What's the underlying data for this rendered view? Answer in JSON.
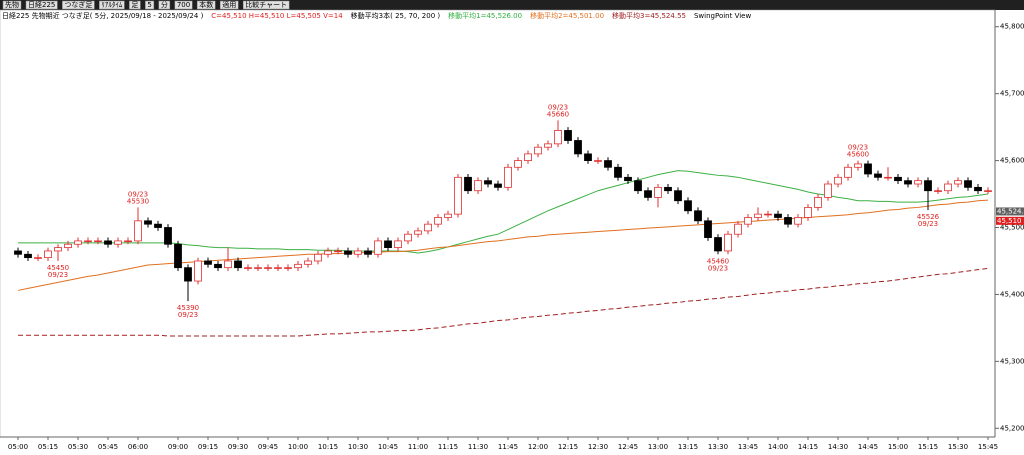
{
  "toolbar": [
    "先物",
    "日経225",
    "つなぎ足",
    "ﾘｱﾙﾀｲﾑ",
    "足",
    "5",
    "分",
    "700",
    "本数",
    "適用",
    "比較チャート"
  ],
  "chart_data": {
    "type": "candlestick",
    "header": [
      {
        "text": "日経225 先物期近 つなぎ足( 5分, 2025/09/18 - 2025/09/24 )",
        "color": "#000000"
      },
      {
        "text": "C=45,510 H=45,510 L=45,505 V=14",
        "color": "#e02020"
      },
      {
        "text": "移動平均3本( 25, 70, 200 )",
        "color": "#000000"
      },
      {
        "text": "移動平均1=45,526.00",
        "color": "#30b040"
      },
      {
        "text": "移動平均2=45,501.00",
        "color": "#e07020"
      },
      {
        "text": "移動平均3=45,524.55",
        "color": "#a02020"
      },
      {
        "text": "SwingPoint View",
        "color": "#000000"
      }
    ],
    "categories": [
      "05:00",
      null,
      null,
      "05:15",
      null,
      null,
      "05:30",
      null,
      null,
      "05:45",
      null,
      null,
      "06:00",
      null,
      null,
      null,
      "09:00",
      null,
      null,
      "09:15",
      null,
      null,
      "09:30",
      null,
      null,
      "09:45",
      null,
      null,
      "10:00",
      null,
      null,
      "10:15",
      null,
      null,
      "10:30",
      null,
      null,
      "10:45",
      null,
      null,
      "11:00",
      null,
      null,
      "11:15",
      null,
      null,
      "11:30",
      null,
      null,
      "11:45",
      null,
      null,
      "12:00",
      null,
      null,
      "12:15",
      null,
      null,
      "12:30",
      null,
      null,
      "12:45",
      null,
      null,
      "13:00",
      null,
      null,
      "13:15",
      null,
      null,
      "13:30",
      null,
      null,
      "13:45",
      null,
      null,
      "14:00",
      null,
      null,
      "14:15",
      null,
      null,
      "14:30",
      null,
      null,
      "14:45",
      null,
      null,
      "15:00",
      null,
      null,
      "15:15",
      null,
      null,
      "15:30",
      null,
      null,
      "15:45"
    ],
    "open": [
      45465,
      45460,
      45455,
      45455,
      45465,
      45470,
      45475,
      45480,
      45480,
      45480,
      45475,
      45480,
      45480,
      45510,
      45505,
      45500,
      45475,
      45440,
      45420,
      45450,
      45445,
      45440,
      45450,
      45440,
      45440,
      45440,
      45440,
      45440,
      45440,
      45445,
      45450,
      45460,
      45465,
      45465,
      45460,
      45465,
      45460,
      45480,
      45470,
      45480,
      45490,
      45495,
      45505,
      45515,
      45520,
      45575,
      45555,
      45570,
      45565,
      45560,
      45590,
      45600,
      45610,
      45620,
      45625,
      45645,
      45630,
      45610,
      45600,
      45600,
      45590,
      45575,
      45570,
      45555,
      45545,
      45560,
      45555,
      45540,
      45525,
      45510,
      45485,
      45465,
      45490,
      45505,
      45515,
      45520,
      45520,
      45515,
      45505,
      45515,
      45530,
      45545,
      45565,
      45575,
      45590,
      45595,
      45580,
      45575,
      45575,
      45570,
      45565,
      45570,
      45555,
      45555,
      45565,
      45570,
      45560,
      45555
    ],
    "high": [
      45470,
      45465,
      45460,
      45470,
      45475,
      45480,
      45485,
      45485,
      45485,
      45485,
      45485,
      45485,
      45530,
      45515,
      45510,
      45505,
      45480,
      45445,
      45455,
      45455,
      45450,
      45470,
      45455,
      45445,
      45445,
      45445,
      45445,
      45445,
      45450,
      45455,
      45465,
      45470,
      45470,
      45470,
      45470,
      45470,
      45485,
      45485,
      45485,
      45495,
      45500,
      45510,
      45520,
      45525,
      45580,
      45580,
      45575,
      45575,
      45570,
      45595,
      45605,
      45615,
      45625,
      45630,
      45660,
      45650,
      45635,
      45615,
      45605,
      45605,
      45595,
      45580,
      45575,
      45560,
      45565,
      45565,
      45560,
      45545,
      45530,
      45515,
      45490,
      45495,
      45510,
      45520,
      45530,
      45525,
      45525,
      45520,
      45520,
      45535,
      45550,
      45570,
      45580,
      45595,
      45600,
      45600,
      45585,
      45590,
      45580,
      45575,
      45575,
      45575,
      45560,
      45570,
      45575,
      45575,
      45565,
      45560
    ],
    "low": [
      45455,
      45450,
      45450,
      45450,
      45450,
      45465,
      45470,
      45475,
      45475,
      45470,
      45470,
      45475,
      45475,
      45500,
      45495,
      45470,
      45435,
      45390,
      45415,
      45440,
      45435,
      45435,
      45435,
      45435,
      45435,
      45435,
      45435,
      45435,
      45435,
      45440,
      45445,
      45455,
      45460,
      45455,
      45455,
      45455,
      45455,
      45465,
      45465,
      45475,
      45485,
      45490,
      45500,
      45510,
      45515,
      45550,
      45550,
      45560,
      45555,
      45555,
      45585,
      45595,
      45605,
      45615,
      45620,
      45625,
      45605,
      45595,
      45595,
      45585,
      45570,
      45565,
      45550,
      45540,
      45530,
      45550,
      45535,
      45520,
      45505,
      45480,
      45460,
      45460,
      45485,
      45500,
      45510,
      45515,
      45510,
      45500,
      45500,
      45510,
      45525,
      45540,
      45560,
      45570,
      45585,
      45575,
      45570,
      45570,
      45565,
      45560,
      45560,
      45526,
      45550,
      45550,
      45560,
      45555,
      45550,
      45550
    ],
    "close": [
      45460,
      45455,
      45455,
      45465,
      45470,
      45475,
      45480,
      45480,
      45480,
      45475,
      45480,
      45480,
      45510,
      45505,
      45500,
      45475,
      45440,
      45420,
      45450,
      45445,
      45440,
      45450,
      45440,
      45440,
      45440,
      45440,
      45440,
      45440,
      45445,
      45450,
      45460,
      45465,
      45465,
      45460,
      45465,
      45460,
      45480,
      45470,
      45480,
      45490,
      45495,
      45505,
      45515,
      45520,
      45575,
      45555,
      45570,
      45565,
      45560,
      45590,
      45600,
      45610,
      45620,
      45625,
      45645,
      45630,
      45610,
      45600,
      45600,
      45590,
      45575,
      45570,
      45555,
      45545,
      45560,
      45555,
      45540,
      45525,
      45510,
      45485,
      45465,
      45490,
      45505,
      45515,
      45520,
      45520,
      45515,
      45505,
      45515,
      45530,
      45545,
      45565,
      45575,
      45590,
      45595,
      45580,
      45575,
      45575,
      45570,
      45565,
      45570,
      45555,
      45555,
      45565,
      45570,
      45560,
      45555,
      45555
    ],
    "up_color": "#e03030",
    "down_color": "#000000",
    "series": [
      {
        "color": "#3cb043",
        "dash": false,
        "values": [
          45477,
          45477,
          45477,
          45477,
          45477,
          45477,
          45477,
          45477,
          45477,
          45477,
          45477,
          45477,
          45477,
          45477,
          45477,
          45477,
          45476,
          45474,
          45473,
          45471,
          45470,
          45470,
          45469,
          45469,
          45468,
          45468,
          45468,
          45467,
          45467,
          45467,
          45466,
          45466,
          45466,
          45465,
          45465,
          45465,
          45465,
          45465,
          45465,
          45464,
          45462,
          45464,
          45467,
          45471,
          45475,
          45479,
          45483,
          45487,
          45490,
          45497,
          45504,
          45511,
          45518,
          45525,
          45531,
          45537,
          45543,
          45549,
          45555,
          45559,
          45563,
          45567,
          45571,
          45575,
          45579,
          45582,
          45585,
          45584,
          45582,
          45580,
          45578,
          45577,
          45575,
          45572,
          45569,
          45566,
          45563,
          45560,
          45557,
          45553,
          45550,
          45548,
          45545,
          45543,
          45540,
          45540,
          45539,
          45539,
          45538,
          45538,
          45538,
          45539,
          45541,
          45543,
          45545,
          45546,
          45548,
          45550
        ]
      },
      {
        "color": "#e07020",
        "dash": false,
        "values": [
          45406,
          45409,
          45412,
          45415,
          45418,
          45421,
          45424,
          45427,
          45429,
          45432,
          45435,
          45438,
          45441,
          45444,
          45445,
          45446,
          45447,
          45448,
          45449,
          45450,
          45451,
          45452,
          45453,
          45454,
          45455,
          45456,
          45457,
          45458,
          45459,
          45460,
          45460,
          45461,
          45461,
          45462,
          45462,
          45463,
          45463,
          45464,
          45464,
          45465,
          45466,
          45468,
          45470,
          45471,
          45473,
          45475,
          45477,
          45479,
          45480,
          45482,
          45484,
          45486,
          45487,
          45489,
          45490,
          45491,
          45492,
          45493,
          45494,
          45495,
          45496,
          45497,
          45498,
          45499,
          45500,
          45501,
          45502,
          45503,
          45504,
          45505,
          45506,
          45507,
          45508,
          45509,
          45510,
          45511,
          45512,
          45513,
          45514,
          45515,
          45516,
          45517,
          45518,
          45519,
          45521,
          45522,
          45524,
          45526,
          45527,
          45529,
          45530,
          45532,
          45534,
          45535,
          45537,
          45538,
          45540,
          45541
        ]
      },
      {
        "color": "#a02020",
        "dash": true,
        "values": [
          45339,
          45339,
          45339,
          45339,
          45339,
          45339,
          45339,
          45339,
          45339,
          45339,
          45339,
          45339,
          45339,
          45339,
          45339,
          45338,
          45338,
          45338,
          45338,
          45338,
          45338,
          45338,
          45338,
          45338,
          45338,
          45338,
          45338,
          45338,
          45338,
          45339,
          45340,
          45341,
          45341,
          45342,
          45343,
          45344,
          45344,
          45345,
          45346,
          45346,
          45347,
          45349,
          45350,
          45352,
          45354,
          45356,
          45357,
          45359,
          45361,
          45362,
          45364,
          45366,
          45367,
          45369,
          45370,
          45372,
          45373,
          45375,
          45376,
          45378,
          45379,
          45381,
          45382,
          45384,
          45385,
          45387,
          45388,
          45390,
          45391,
          45393,
          45394,
          45396,
          45397,
          45399,
          45401,
          45402,
          45404,
          45405,
          45407,
          45408,
          45410,
          45411,
          45413,
          45414,
          45416,
          45417,
          45419,
          45420,
          45422,
          45424,
          45426,
          45428,
          45430,
          45431,
          45433,
          45435,
          45437,
          45439
        ]
      }
    ],
    "annotations": [
      {
        "index": 4,
        "price": 45450,
        "date": "09/23",
        "position": "below"
      },
      {
        "index": 12,
        "price": 45530,
        "date": "09/23",
        "position": "above"
      },
      {
        "index": 17,
        "price": 45390,
        "date": "09/23",
        "position": "below"
      },
      {
        "index": 54,
        "price": 45660,
        "date": "09/23",
        "position": "above"
      },
      {
        "index": 70,
        "price": 45460,
        "date": "09/23",
        "position": "below"
      },
      {
        "index": 84,
        "price": 45600,
        "date": "09/23",
        "position": "above"
      },
      {
        "index": 91,
        "price": 45526,
        "date": "09/23",
        "position": "below"
      }
    ],
    "annotation_color": "#e02020",
    "price_tags": [
      {
        "value": 45524,
        "label": "45,524.0",
        "color": "#606060"
      },
      {
        "value": 45510,
        "label": "45,510",
        "color": "#e02020"
      }
    ],
    "ylim": [
      45187,
      45825
    ],
    "yticks": [
      {
        "value": 45200,
        "label": "45,200"
      },
      {
        "value": 45300,
        "label": "45,300"
      },
      {
        "value": 45400,
        "label": "45,400"
      },
      {
        "value": 45500,
        "label": "45,500"
      },
      {
        "value": 45600,
        "label": "45,600"
      },
      {
        "value": 45700,
        "label": "45,700"
      },
      {
        "value": 45800,
        "label": "45,800"
      }
    ]
  }
}
